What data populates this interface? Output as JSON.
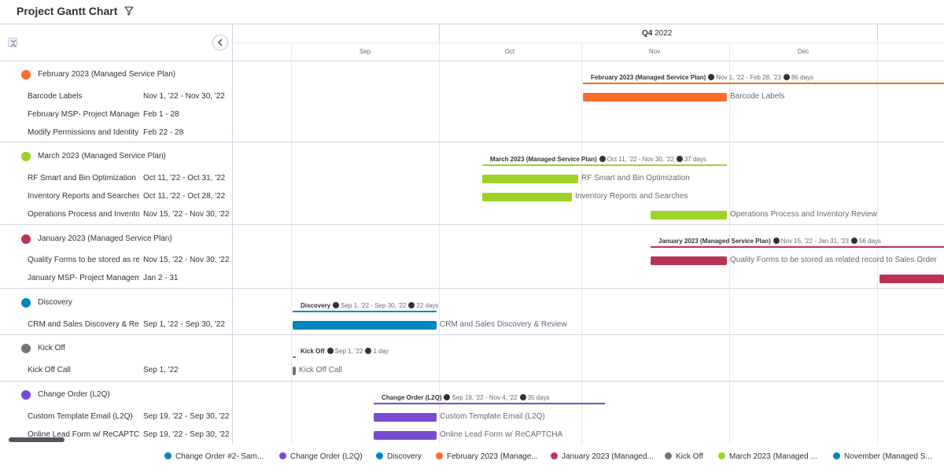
{
  "app": {
    "title": "Project Gantt Chart"
  },
  "header": {
    "quarter_bold": "Q4",
    "quarter_year": "2022"
  },
  "months": [
    "Sep",
    "Oct",
    "Nov",
    "Dec"
  ],
  "groups": [
    {
      "title": "February 2023 (Managed Service Plan)",
      "color": "#fb6b2a",
      "summary": {
        "name": "February 2023 (Managed Service Plan)",
        "dates": "Nov 1, '22 - Feb 28, '23",
        "days": "86 days"
      },
      "items": [
        {
          "name": "Barcode Labels",
          "dates": "Nov 1, '22 - Nov 30, '22",
          "bar_label": "Barcode Labels"
        },
        {
          "name": "February MSP- Project Management",
          "dates": "Feb 1 - 28",
          "bar_label": ""
        },
        {
          "name": "Modify Permissions and Identity",
          "dates": "Feb 22 - 28",
          "bar_label": ""
        }
      ]
    },
    {
      "title": "March 2023 (Managed Service Plan)",
      "color": "#9cd326",
      "summary": {
        "name": "March 2023 (Managed Service Plan)",
        "dates": "Oct 11, '22 - Nov 30, '22",
        "days": "37 days"
      },
      "items": [
        {
          "name": "RF Smart and Bin Optimization",
          "dates": "Oct 11, '22 - Oct 31, '22",
          "bar_label": "RF Smart and Bin Optimization"
        },
        {
          "name": "Inventory Reports and Searches",
          "dates": "Oct 11, '22 - Oct 28, '22",
          "bar_label": "Inventory Reports and Searches"
        },
        {
          "name": "Operations Process and Inventory Review",
          "dates": "Nov 15, '22 - Nov 30, '22",
          "bar_label": "Operations Process and Inventory Review"
        }
      ]
    },
    {
      "title": "January 2023 (Managed Service Plan)",
      "color": "#bb3354",
      "summary": {
        "name": "January 2023 (Managed Service Plan)",
        "dates": "Nov 15, '22 - Jan 31, '23",
        "days": "56 days"
      },
      "items": [
        {
          "name": "Quality Forms to be stored as related record",
          "dates": "Nov 15, '22 - Nov 30, '22",
          "bar_label": "Quality Forms to be stored as related record to Sales Order"
        },
        {
          "name": "January MSP- Project Management",
          "dates": "Jan 2 - 31",
          "bar_label": ""
        }
      ]
    },
    {
      "title": "Discovery",
      "color": "#0086c0",
      "summary": {
        "name": "Discovery",
        "dates": "Sep 1, '22 - Sep 30, '22",
        "days": "22 days"
      },
      "items": [
        {
          "name": "CRM and Sales Discovery & Review",
          "dates": "Sep 1, '22 - Sep 30, '22",
          "bar_label": "CRM and Sales Discovery & Review"
        }
      ]
    },
    {
      "title": "Kick Off",
      "color": "#757575",
      "summary": {
        "name": "Kick Off",
        "dates": "Sep 1, '22",
        "days": "1 day"
      },
      "items": [
        {
          "name": "Kick Off Call",
          "dates": "Sep 1, '22",
          "bar_label": "Kick Off Call"
        }
      ]
    },
    {
      "title": "Change Order (L2Q)",
      "color": "#784bd1",
      "summary": {
        "name": "Change Order (L2Q)",
        "dates": "Sep 19, '22 - Nov 4, '22",
        "days": "35 days"
      },
      "items": [
        {
          "name": "Custom Template Email (L2Q)",
          "dates": "Sep 19, '22 - Sep 30, '22",
          "bar_label": "Custom Template Email (L2Q)"
        },
        {
          "name": "Online Lead Form w/ ReCAPTCHA",
          "dates": "Sep 19, '22 - Sep 30, '22",
          "bar_label": "Online Lead Form w/ ReCAPTCHA"
        }
      ]
    }
  ],
  "legend": [
    {
      "label": "Change Order #2- Sam...",
      "color": "#0086c0"
    },
    {
      "label": "Change Order (L2Q)",
      "color": "#784bd1"
    },
    {
      "label": "Discovery",
      "color": "#0086c0"
    },
    {
      "label": "February 2023 (Manage...",
      "color": "#fb6b2a"
    },
    {
      "label": "January 2023 (Managed...",
      "color": "#bb3354"
    },
    {
      "label": "Kick Off",
      "color": "#757575"
    },
    {
      "label": "March 2023 (Managed ...",
      "color": "#9cd326"
    },
    {
      "label": "November (Managed S...",
      "color": "#0086c0"
    }
  ]
}
